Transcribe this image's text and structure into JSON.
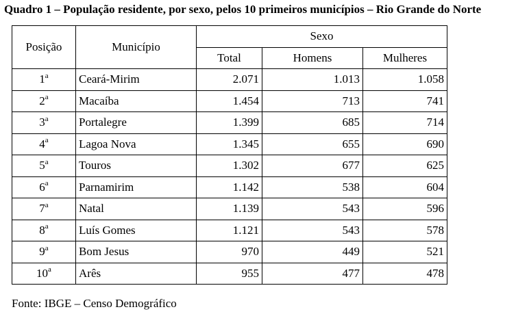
{
  "title": "Quadro 1 – População residente, por sexo, pelos 10 primeiros municípios – Rio Grande do Norte",
  "headers": {
    "posicao": "Posição",
    "municipio": "Município",
    "sexo": "Sexo",
    "total": "Total",
    "homens": "Homens",
    "mulheres": "Mulheres"
  },
  "rows": [
    {
      "pos": "1",
      "ord": "a",
      "municipio": "Ceará-Mirim",
      "total": "2.071",
      "homens": "1.013",
      "mulheres": "1.058"
    },
    {
      "pos": "2",
      "ord": "a",
      "municipio": "Macaíba",
      "total": "1.454",
      "homens": "713",
      "mulheres": "741"
    },
    {
      "pos": "3",
      "ord": "a",
      "municipio": "Portalegre",
      "total": "1.399",
      "homens": "685",
      "mulheres": "714"
    },
    {
      "pos": "4",
      "ord": "a",
      "municipio": "Lagoa Nova",
      "total": "1.345",
      "homens": "655",
      "mulheres": "690"
    },
    {
      "pos": "5",
      "ord": "a",
      "municipio": "Touros",
      "total": "1.302",
      "homens": "677",
      "mulheres": "625"
    },
    {
      "pos": "6",
      "ord": "a",
      "municipio": "Parnamirim",
      "total": "1.142",
      "homens": "538",
      "mulheres": "604"
    },
    {
      "pos": "7",
      "ord": "a",
      "municipio": "Natal",
      "total": "1.139",
      "homens": "543",
      "mulheres": "596"
    },
    {
      "pos": "8",
      "ord": "a",
      "municipio": "Luís Gomes",
      "total": "1.121",
      "homens": "543",
      "mulheres": "578"
    },
    {
      "pos": "9",
      "ord": "a",
      "municipio": "Bom Jesus",
      "total": "970",
      "homens": "449",
      "mulheres": "521"
    },
    {
      "pos": "10",
      "ord": "a",
      "municipio": "Arês",
      "total": "955",
      "homens": "477",
      "mulheres": "478"
    }
  ],
  "source": "Fonte: IBGE – Censo Demográfico"
}
